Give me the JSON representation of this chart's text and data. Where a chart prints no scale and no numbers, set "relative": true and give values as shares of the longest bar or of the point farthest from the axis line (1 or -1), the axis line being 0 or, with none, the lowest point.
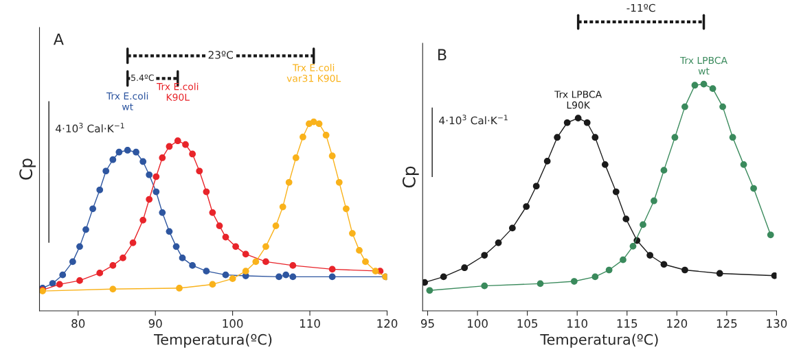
{
  "chart_data": [
    {
      "type": "line",
      "title": "A",
      "xlabel": "Temperatura(ºC)",
      "ylabel": "Cp",
      "relative": true,
      "marker": "circle",
      "line_style": "solid",
      "xlim": [
        75,
        120
      ],
      "xticks": [
        80,
        90,
        100,
        110,
        120
      ],
      "tick_labels": "x",
      "annotations": [
        "23ºC",
        "5.4ºC",
        "4·10$^{3}$ Cal·K$^{−1}$"
      ],
      "series": [
        {
          "name": "Trx E.coli\nwt",
          "color": "#2e56a0",
          "x": [
            75.4,
            76.7,
            78.0,
            79.3,
            80.2,
            81.0,
            81.9,
            82.8,
            83.6,
            84.5,
            85.3,
            86.4,
            87.5,
            88.4,
            89.2,
            90.1,
            90.9,
            91.8,
            92.7,
            93.5,
            94.8,
            96.6,
            99.1,
            101.7,
            106.0,
            106.9,
            107.8,
            112.9,
            119.8
          ],
          "values": [
            0.12,
            0.145,
            0.19,
            0.26,
            0.34,
            0.43,
            0.54,
            0.64,
            0.74,
            0.8,
            0.84,
            0.85,
            0.84,
            0.79,
            0.72,
            0.63,
            0.52,
            0.42,
            0.34,
            0.28,
            0.24,
            0.21,
            0.19,
            0.185,
            0.18,
            0.19,
            0.18,
            0.18,
            0.18
          ]
        },
        {
          "name": "Trx E.coli\nK90L",
          "color": "#e8242a",
          "x": [
            75.4,
            77.6,
            80.2,
            82.8,
            84.5,
            85.8,
            87.1,
            88.4,
            89.2,
            90.1,
            90.9,
            91.8,
            92.9,
            93.9,
            94.8,
            95.7,
            96.6,
            97.4,
            98.3,
            99.1,
            100.4,
            101.7,
            104.3,
            107.8,
            112.9,
            119.1
          ],
          "values": [
            0.11,
            0.14,
            0.16,
            0.2,
            0.24,
            0.28,
            0.36,
            0.48,
            0.59,
            0.71,
            0.81,
            0.87,
            0.9,
            0.88,
            0.83,
            0.74,
            0.63,
            0.52,
            0.45,
            0.39,
            0.34,
            0.3,
            0.26,
            0.24,
            0.22,
            0.21
          ]
        },
        {
          "name": "Trx E.coli\nvar31 K90L",
          "color": "#f9b21b",
          "x": [
            75.4,
            84.5,
            93.1,
            97.4,
            100.0,
            101.7,
            103.0,
            104.3,
            105.6,
            106.5,
            107.3,
            108.2,
            109.1,
            109.9,
            110.5,
            111.2,
            112.1,
            112.9,
            113.8,
            114.7,
            115.5,
            116.4,
            117.2,
            118.5,
            119.8
          ],
          "values": [
            0.105,
            0.115,
            0.12,
            0.14,
            0.17,
            0.21,
            0.26,
            0.34,
            0.45,
            0.55,
            0.68,
            0.81,
            0.92,
            0.99,
            1.0,
            0.99,
            0.93,
            0.82,
            0.68,
            0.54,
            0.41,
            0.32,
            0.26,
            0.21,
            0.18
          ]
        }
      ]
    },
    {
      "type": "line",
      "title": "B",
      "xlabel": "Temperatura(ºC)",
      "ylabel": "Cp",
      "relative": true,
      "marker": "circle",
      "line_style": "solid",
      "xlim": [
        94.5,
        130
      ],
      "xticks": [
        95,
        100,
        105,
        110,
        115,
        120,
        125,
        130
      ],
      "tick_labels": "x",
      "annotations": [
        "-11ºC",
        "4·10$^{3}$ Cal·K$^{−1}$"
      ],
      "series": [
        {
          "name": "Trx LPBCA\nL90K",
          "color": "#1a1a1a",
          "x": [
            94.7,
            96.6,
            98.7,
            100.7,
            102.1,
            103.5,
            104.9,
            105.9,
            107.0,
            108.0,
            109.0,
            110.1,
            111.0,
            111.8,
            112.8,
            113.9,
            114.9,
            116.0,
            117.3,
            118.7,
            120.8,
            124.3,
            129.8
          ],
          "values": [
            0.125,
            0.15,
            0.19,
            0.245,
            0.3,
            0.365,
            0.46,
            0.55,
            0.66,
            0.765,
            0.83,
            0.85,
            0.83,
            0.765,
            0.645,
            0.525,
            0.405,
            0.31,
            0.245,
            0.205,
            0.18,
            0.165,
            0.155
          ]
        },
        {
          "name": "Trx LPBCA\nwt",
          "color": "#3a8a5c",
          "x": [
            95.2,
            100.7,
            106.3,
            109.7,
            111.8,
            113.2,
            114.6,
            115.6,
            116.6,
            117.7,
            118.7,
            119.8,
            120.8,
            121.8,
            122.7,
            123.6,
            124.6,
            125.6,
            126.7,
            127.7,
            129.4
          ],
          "values": [
            0.09,
            0.11,
            0.12,
            0.13,
            0.15,
            0.18,
            0.225,
            0.285,
            0.38,
            0.485,
            0.62,
            0.765,
            0.9,
            0.995,
            1.0,
            0.98,
            0.9,
            0.765,
            0.645,
            0.54,
            0.335
          ]
        }
      ]
    }
  ]
}
